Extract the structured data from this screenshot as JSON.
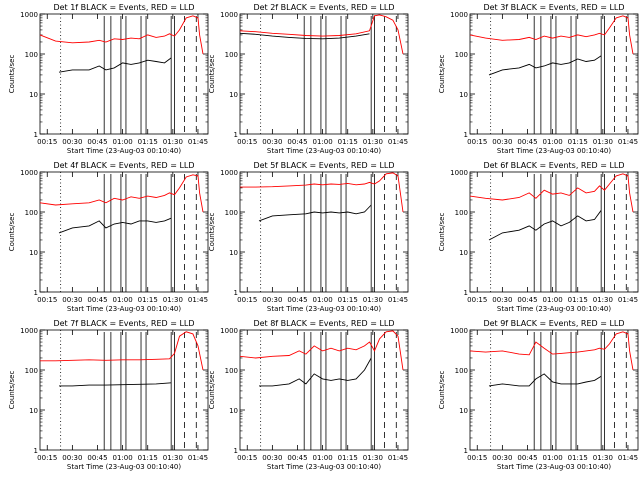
{
  "figure": {
    "xlabel": "Start Time (23-Aug-03 00:10:40)",
    "ylabel": "Counts/sec"
  },
  "colors": {
    "events": "#000000",
    "lld": "#ff0000",
    "frame": "#000000"
  },
  "chart_data": [
    {
      "type": "line",
      "title": "Det 1f BLACK = Events, RED = LLD",
      "xlabel": "Start Time (23-Aug-03 00:10:40)",
      "ylabel": "Counts/sec",
      "ylog": true,
      "ylim": [
        1,
        1000
      ],
      "x_ticks": [
        "00:15",
        "00:30",
        "00:45",
        "01:00",
        "01:15",
        "01:30",
        "01:45"
      ],
      "y_ticks": [
        "1",
        "10",
        "100",
        "1000"
      ],
      "series": [
        {
          "color": "#ff0000",
          "x": [
            "00:10:40",
            "00:20",
            "00:30",
            "00:40",
            "00:46",
            "00:50",
            "00:55",
            "01:00",
            "01:05",
            "01:10",
            "01:15",
            "01:20",
            "01:25",
            "01:28",
            "01:31",
            "01:34",
            "01:38",
            "01:42",
            "01:45",
            "01:46",
            "01:48"
          ],
          "y": [
            300,
            210,
            190,
            200,
            220,
            200,
            240,
            230,
            250,
            240,
            300,
            260,
            280,
            320,
            280,
            400,
            800,
            900,
            800,
            300,
            100
          ]
        },
        {
          "color": "#000000",
          "x": [
            "00:22",
            "00:30",
            "00:40",
            "00:46",
            "00:50",
            "00:55",
            "01:00",
            "01:05",
            "01:10",
            "01:15",
            "01:20",
            "01:25",
            "01:29"
          ],
          "y": [
            35,
            40,
            40,
            50,
            40,
            45,
            60,
            55,
            60,
            70,
            65,
            60,
            80
          ]
        }
      ],
      "vlines_solid": [
        "00:49",
        "00:53",
        "00:59",
        "01:02",
        "01:11",
        "01:14",
        "01:29",
        "01:31"
      ],
      "vlines_dashed": [
        "01:37",
        "01:44"
      ],
      "vlines_dotted": [
        "00:23"
      ]
    },
    {
      "type": "line",
      "title": "Det 2f BLACK = Events, RED = LLD",
      "xlabel": "Start Time (23-Aug-03 00:10:40)",
      "ylabel": "Counts/sec",
      "ylog": true,
      "ylim": [
        1,
        1000
      ],
      "x_ticks": [
        "00:15",
        "00:30",
        "00:45",
        "01:00",
        "01:15",
        "01:30",
        "01:45"
      ],
      "y_ticks": [
        "1",
        "10",
        "100",
        "1000"
      ],
      "series": [
        {
          "color": "#ff0000",
          "x": [
            "00:10:40",
            "00:20",
            "00:30",
            "00:40",
            "00:50",
            "01:00",
            "01:10",
            "01:20",
            "01:28",
            "01:31",
            "01:34",
            "01:38",
            "01:42",
            "01:45",
            "01:48"
          ],
          "y": [
            380,
            360,
            330,
            310,
            290,
            280,
            290,
            320,
            380,
            900,
            950,
            850,
            700,
            400,
            100
          ]
        },
        {
          "color": "#000000",
          "x": [
            "00:10:40",
            "00:20",
            "00:30",
            "00:40",
            "00:50",
            "01:00",
            "01:10",
            "01:20",
            "01:28"
          ],
          "y": [
            330,
            310,
            280,
            260,
            245,
            240,
            250,
            280,
            320
          ]
        }
      ],
      "vlines_solid": [
        "00:49",
        "00:53",
        "00:59",
        "01:02",
        "01:11",
        "01:14",
        "01:29",
        "01:31"
      ],
      "vlines_dashed": [
        "01:37",
        "01:44"
      ],
      "vlines_dotted": [
        "00:23"
      ]
    },
    {
      "type": "line",
      "title": "Det 3f BLACK = Events, RED = LLD",
      "xlabel": "Start Time (23-Aug-03 00:10:40)",
      "ylabel": "Counts/sec",
      "ylog": true,
      "ylim": [
        1,
        1000
      ],
      "x_ticks": [
        "00:15",
        "00:30",
        "00:45",
        "01:00",
        "01:15",
        "01:30",
        "01:45"
      ],
      "y_ticks": [
        "1",
        "10",
        "100",
        "1000"
      ],
      "series": [
        {
          "color": "#ff0000",
          "x": [
            "00:10:40",
            "00:20",
            "00:30",
            "00:40",
            "00:46",
            "00:50",
            "00:55",
            "01:00",
            "01:05",
            "01:10",
            "01:15",
            "01:20",
            "01:25",
            "01:28",
            "01:31",
            "01:34",
            "01:38",
            "01:42",
            "01:45",
            "01:46",
            "01:48"
          ],
          "y": [
            300,
            250,
            220,
            230,
            260,
            230,
            280,
            250,
            280,
            260,
            300,
            270,
            300,
            330,
            300,
            450,
            800,
            900,
            800,
            300,
            100
          ]
        },
        {
          "color": "#000000",
          "x": [
            "00:22",
            "00:30",
            "00:40",
            "00:46",
            "00:50",
            "00:55",
            "01:00",
            "01:05",
            "01:10",
            "01:15",
            "01:20",
            "01:25",
            "01:29"
          ],
          "y": [
            30,
            40,
            45,
            55,
            45,
            50,
            60,
            55,
            60,
            75,
            65,
            70,
            90
          ]
        }
      ],
      "vlines_solid": [
        "00:49",
        "00:53",
        "00:59",
        "01:02",
        "01:11",
        "01:14",
        "01:29",
        "01:31"
      ],
      "vlines_dashed": [
        "01:37",
        "01:44"
      ],
      "vlines_dotted": [
        "00:23"
      ]
    },
    {
      "type": "line",
      "title": "Det 4f BLACK = Events, RED = LLD",
      "xlabel": "Start Time (23-Aug-03 00:10:40)",
      "ylabel": "Counts/sec",
      "ylog": true,
      "ylim": [
        1,
        1000
      ],
      "x_ticks": [
        "00:15",
        "00:30",
        "00:45",
        "01:00",
        "01:15",
        "01:30",
        "01:45"
      ],
      "y_ticks": [
        "1",
        "10",
        "100",
        "1000"
      ],
      "series": [
        {
          "color": "#ff0000",
          "x": [
            "00:10:40",
            "00:20",
            "00:30",
            "00:40",
            "00:46",
            "00:50",
            "00:55",
            "01:00",
            "01:05",
            "01:10",
            "01:15",
            "01:20",
            "01:25",
            "01:28",
            "01:31",
            "01:34",
            "01:38",
            "01:42",
            "01:45",
            "01:46",
            "01:48"
          ],
          "y": [
            170,
            150,
            160,
            170,
            200,
            170,
            220,
            200,
            240,
            220,
            250,
            230,
            260,
            300,
            270,
            400,
            750,
            850,
            800,
            300,
            100
          ]
        },
        {
          "color": "#000000",
          "x": [
            "00:22",
            "00:30",
            "00:40",
            "00:46",
            "00:50",
            "00:55",
            "01:00",
            "01:05",
            "01:10",
            "01:15",
            "01:20",
            "01:25",
            "01:29"
          ],
          "y": [
            30,
            40,
            45,
            60,
            40,
            50,
            55,
            50,
            60,
            60,
            55,
            60,
            70
          ]
        }
      ],
      "vlines_solid": [
        "00:49",
        "00:53",
        "00:59",
        "01:02",
        "01:11",
        "01:14",
        "01:29",
        "01:31"
      ],
      "vlines_dashed": [
        "01:37",
        "01:44"
      ],
      "vlines_dotted": [
        "00:23"
      ]
    },
    {
      "type": "line",
      "title": "Det 5f BLACK = Events, RED = LLD",
      "xlabel": "Start Time (23-Aug-03 00:10:40)",
      "ylabel": "Counts/sec",
      "ylog": true,
      "ylim": [
        1,
        1000
      ],
      "x_ticks": [
        "00:15",
        "00:30",
        "00:45",
        "01:00",
        "01:15",
        "01:30",
        "01:45"
      ],
      "y_ticks": [
        "1",
        "10",
        "100",
        "1000"
      ],
      "series": [
        {
          "color": "#ff0000",
          "x": [
            "00:10:40",
            "00:20",
            "00:30",
            "00:40",
            "00:50",
            "00:55",
            "01:00",
            "01:05",
            "01:10",
            "01:15",
            "01:20",
            "01:25",
            "01:28",
            "01:31",
            "01:34",
            "01:38",
            "01:42",
            "01:45",
            "01:48"
          ],
          "y": [
            420,
            420,
            430,
            450,
            470,
            500,
            480,
            500,
            490,
            520,
            480,
            500,
            550,
            500,
            600,
            900,
            950,
            800,
            100
          ]
        },
        {
          "color": "#000000",
          "x": [
            "00:22",
            "00:30",
            "00:40",
            "00:50",
            "00:55",
            "01:00",
            "01:05",
            "01:10",
            "01:15",
            "01:20",
            "01:25",
            "01:29"
          ],
          "y": [
            60,
            80,
            85,
            90,
            100,
            95,
            100,
            95,
            100,
            90,
            100,
            150
          ]
        }
      ],
      "vlines_solid": [
        "00:49",
        "00:53",
        "00:59",
        "01:02",
        "01:11",
        "01:14",
        "01:29",
        "01:31"
      ],
      "vlines_dashed": [
        "01:37",
        "01:44"
      ],
      "vlines_dotted": [
        "00:23"
      ]
    },
    {
      "type": "line",
      "title": "Det 6f BLACK = Events, RED = LLD",
      "xlabel": "Start Time (23-Aug-03 00:10:40)",
      "ylabel": "Counts/sec",
      "ylog": true,
      "ylim": [
        1,
        1000
      ],
      "x_ticks": [
        "00:15",
        "00:30",
        "00:45",
        "01:00",
        "01:15",
        "01:30",
        "01:45"
      ],
      "y_ticks": [
        "1",
        "10",
        "100",
        "1000"
      ],
      "series": [
        {
          "color": "#ff0000",
          "x": [
            "00:10:40",
            "00:20",
            "00:30",
            "00:40",
            "00:46",
            "00:50",
            "00:55",
            "01:00",
            "01:05",
            "01:10",
            "01:15",
            "01:20",
            "01:25",
            "01:28",
            "01:31",
            "01:34",
            "01:38",
            "01:42",
            "01:45",
            "01:46",
            "01:48"
          ],
          "y": [
            250,
            220,
            200,
            230,
            300,
            220,
            350,
            280,
            300,
            260,
            400,
            300,
            330,
            450,
            350,
            500,
            800,
            900,
            800,
            300,
            100
          ]
        },
        {
          "color": "#000000",
          "x": [
            "00:22",
            "00:30",
            "00:40",
            "00:46",
            "00:50",
            "00:55",
            "01:00",
            "01:05",
            "01:10",
            "01:15",
            "01:20",
            "01:25",
            "01:29"
          ],
          "y": [
            20,
            30,
            35,
            45,
            35,
            50,
            60,
            45,
            55,
            80,
            60,
            65,
            110
          ]
        }
      ],
      "vlines_solid": [
        "00:49",
        "00:53",
        "00:59",
        "01:02",
        "01:11",
        "01:14",
        "01:29",
        "01:31"
      ],
      "vlines_dashed": [
        "01:37",
        "01:44"
      ],
      "vlines_dotted": [
        "00:23"
      ]
    },
    {
      "type": "line",
      "title": "Det 7f BLACK = Events, RED = LLD",
      "xlabel": "Start Time (23-Aug-03 00:10:40)",
      "ylabel": "Counts/sec",
      "ylog": true,
      "ylim": [
        1,
        1000
      ],
      "x_ticks": [
        "00:15",
        "00:30",
        "00:45",
        "01:00",
        "01:15",
        "01:30",
        "01:45"
      ],
      "y_ticks": [
        "1",
        "10",
        "100",
        "1000"
      ],
      "series": [
        {
          "color": "#ff0000",
          "x": [
            "00:10:40",
            "00:20",
            "00:30",
            "00:40",
            "00:50",
            "01:00",
            "01:10",
            "01:20",
            "01:28",
            "01:31",
            "01:34",
            "01:38",
            "01:42",
            "01:45",
            "01:48"
          ],
          "y": [
            170,
            170,
            175,
            180,
            175,
            180,
            180,
            185,
            190,
            260,
            700,
            900,
            800,
            400,
            100
          ]
        },
        {
          "color": "#000000",
          "x": [
            "00:22",
            "00:30",
            "00:40",
            "00:50",
            "01:00",
            "01:10",
            "01:20",
            "01:29"
          ],
          "y": [
            40,
            40,
            42,
            42,
            43,
            44,
            45,
            48
          ]
        }
      ],
      "vlines_solid": [
        "00:49",
        "00:53",
        "00:59",
        "01:02",
        "01:11",
        "01:14",
        "01:29",
        "01:31"
      ],
      "vlines_dashed": [
        "01:37",
        "01:44"
      ],
      "vlines_dotted": [
        "00:23"
      ]
    },
    {
      "type": "line",
      "title": "Det 8f BLACK = Events, RED = LLD",
      "xlabel": "Start Time (23-Aug-03 00:10:40)",
      "ylabel": "Counts/sec",
      "ylog": true,
      "ylim": [
        1,
        1000
      ],
      "x_ticks": [
        "00:15",
        "00:30",
        "00:45",
        "01:00",
        "01:15",
        "01:30",
        "01:45"
      ],
      "y_ticks": [
        "1",
        "10",
        "100",
        "1000"
      ],
      "series": [
        {
          "color": "#ff0000",
          "x": [
            "00:10:40",
            "00:20",
            "00:30",
            "00:40",
            "00:46",
            "00:50",
            "00:55",
            "01:00",
            "01:05",
            "01:10",
            "01:15",
            "01:20",
            "01:25",
            "01:28",
            "01:31",
            "01:34",
            "01:38",
            "01:42",
            "01:45",
            "01:48"
          ],
          "y": [
            220,
            200,
            220,
            230,
            300,
            250,
            400,
            300,
            350,
            300,
            350,
            320,
            400,
            500,
            300,
            600,
            900,
            950,
            700,
            100
          ]
        },
        {
          "color": "#000000",
          "x": [
            "00:22",
            "00:30",
            "00:40",
            "00:46",
            "00:50",
            "00:55",
            "01:00",
            "01:05",
            "01:10",
            "01:15",
            "01:20",
            "01:25",
            "01:29"
          ],
          "y": [
            40,
            40,
            45,
            60,
            45,
            80,
            60,
            55,
            60,
            55,
            60,
            100,
            200
          ]
        }
      ],
      "vlines_solid": [
        "00:49",
        "00:53",
        "00:59",
        "01:02",
        "01:11",
        "01:14",
        "01:29",
        "01:31"
      ],
      "vlines_dashed": [
        "01:37",
        "01:44"
      ],
      "vlines_dotted": [
        "00:23"
      ]
    },
    {
      "type": "line",
      "title": "Det 9f BLACK = Events, RED = LLD",
      "xlabel": "Start Time (23-Aug-03 00:10:40)",
      "ylabel": "Counts/sec",
      "ylog": true,
      "ylim": [
        1,
        1000
      ],
      "x_ticks": [
        "00:15",
        "00:30",
        "00:45",
        "01:00",
        "01:15",
        "01:30",
        "01:45"
      ],
      "y_ticks": [
        "1",
        "10",
        "100",
        "1000"
      ],
      "series": [
        {
          "color": "#ff0000",
          "x": [
            "00:10:40",
            "00:20",
            "00:30",
            "00:40",
            "00:46",
            "00:50",
            "00:55",
            "01:00",
            "01:05",
            "01:10",
            "01:15",
            "01:20",
            "01:25",
            "01:28",
            "01:31",
            "01:34",
            "01:38",
            "01:42",
            "01:45",
            "01:46",
            "01:48"
          ],
          "y": [
            300,
            280,
            300,
            250,
            240,
            500,
            350,
            250,
            260,
            270,
            280,
            300,
            320,
            350,
            330,
            450,
            800,
            900,
            800,
            300,
            100
          ]
        },
        {
          "color": "#000000",
          "x": [
            "00:22",
            "00:30",
            "00:40",
            "00:46",
            "00:50",
            "00:55",
            "01:00",
            "01:05",
            "01:10",
            "01:15",
            "01:20",
            "01:25",
            "01:29"
          ],
          "y": [
            40,
            45,
            40,
            40,
            60,
            80,
            50,
            45,
            45,
            45,
            50,
            55,
            70
          ]
        }
      ],
      "vlines_solid": [
        "00:49",
        "00:53",
        "00:59",
        "01:02",
        "01:11",
        "01:14",
        "01:29",
        "01:31"
      ],
      "vlines_dashed": [
        "01:37",
        "01:44"
      ],
      "vlines_dotted": [
        "00:23"
      ]
    }
  ]
}
